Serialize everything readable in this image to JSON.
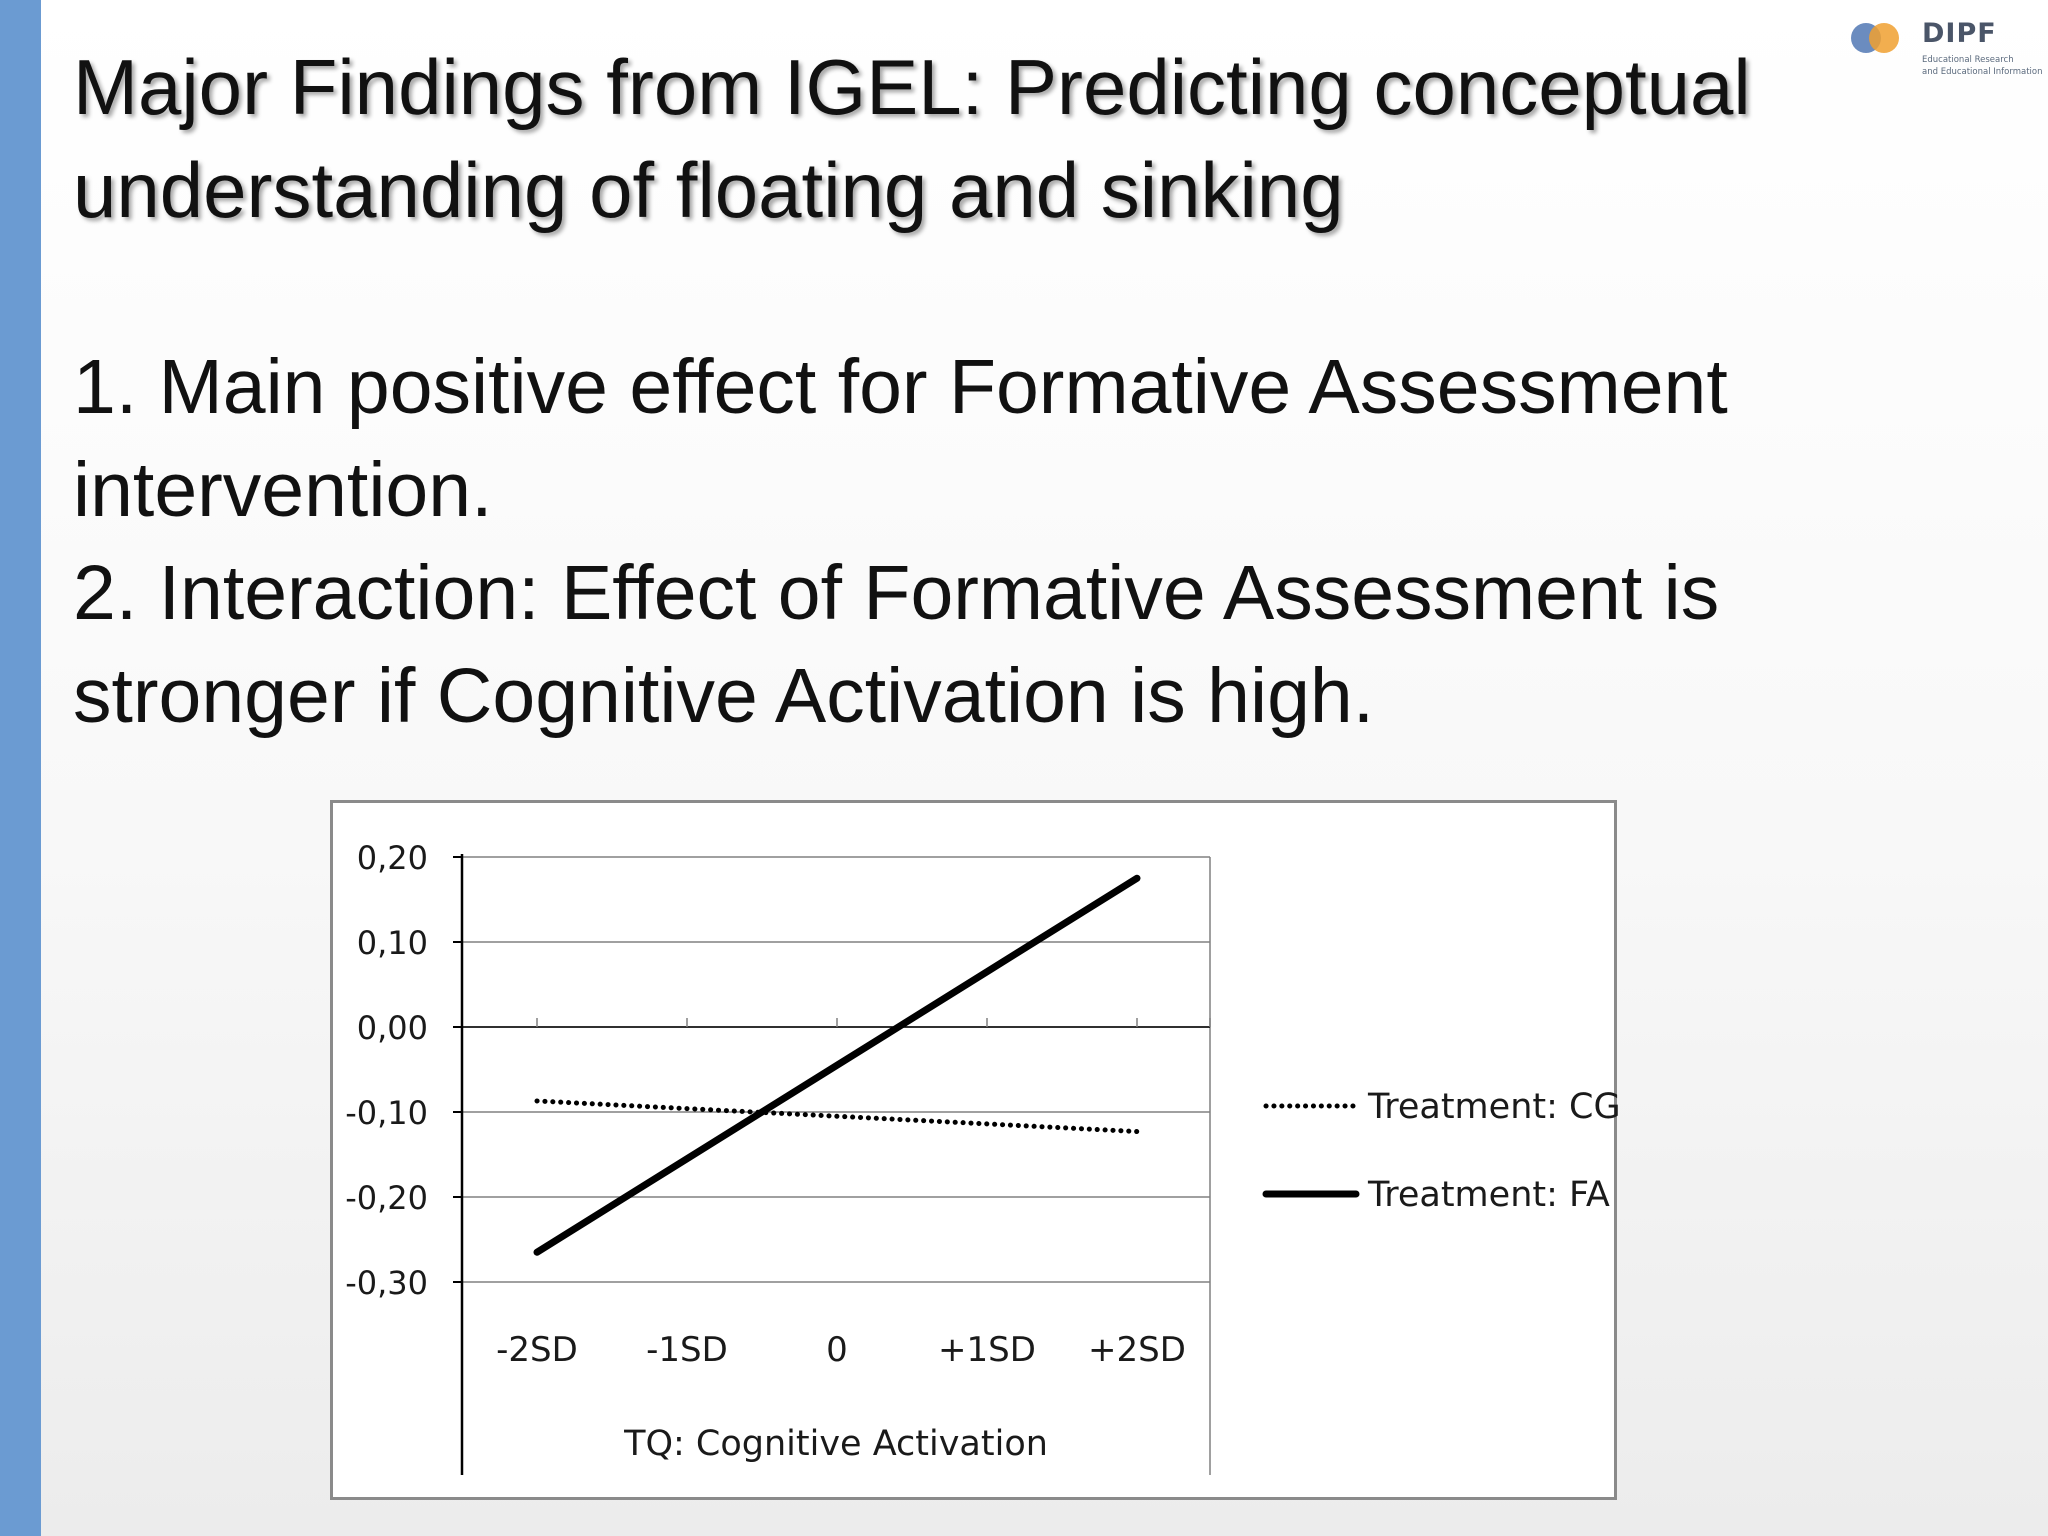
{
  "logo": {
    "name": "DIPF",
    "subtitle_lines": [
      "Educational Research",
      "and Educational Information"
    ],
    "colors": {
      "blue": "#5b7fb8",
      "orange": "#f0a030"
    }
  },
  "slide": {
    "title_lines": [
      "Major Findings from IGEL: Predicting conceptual",
      "understanding of floating and sinking"
    ],
    "point_lines": [
      "1. Main positive effect for Formative Assessment",
      "intervention.",
      "2. Interaction: Effect of Formative Assessment is",
      "stronger if Cognitive Activation is high."
    ],
    "accent_color": "#6b9bd2"
  },
  "chart_data": {
    "type": "line",
    "categories": [
      "-2SD",
      "-1SD",
      "0",
      "+1SD",
      "+2SD"
    ],
    "series": [
      {
        "name": "Treatment: CG",
        "values": [
          -0.087,
          -0.096,
          -0.105,
          -0.114,
          -0.123
        ],
        "style": "dotted",
        "color": "#000000"
      },
      {
        "name": "Treatment: FA",
        "values": [
          -0.265,
          -0.155,
          -0.045,
          0.065,
          0.175
        ],
        "style": "solid",
        "color": "#000000"
      }
    ],
    "y_ticks": [
      "0,20",
      "0,10",
      "0,00",
      "-0,10",
      "-0,20",
      "-0,30"
    ],
    "y_tick_values": [
      0.2,
      0.1,
      0.0,
      -0.1,
      -0.2,
      -0.3
    ],
    "xlabel": "TQ: Cognitive Activation",
    "ylabel": "",
    "ylim": [
      -0.3,
      0.2
    ],
    "grid": true,
    "legend_position": "right"
  }
}
